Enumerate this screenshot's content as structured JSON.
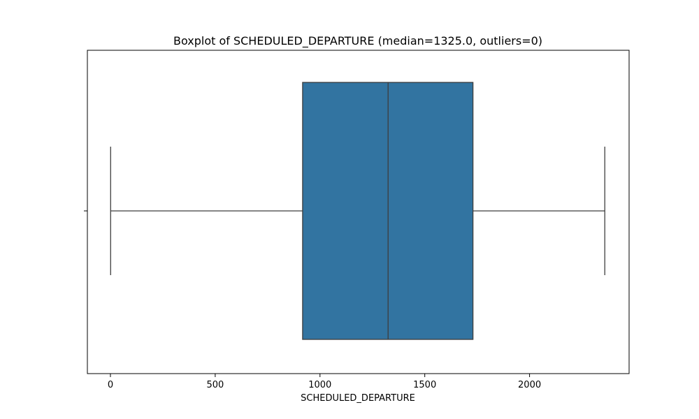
{
  "chart_data": {
    "type": "boxplot",
    "title": "Boxplot of SCHEDULED_DEPARTURE (median=1325.0, outliers=0)",
    "xlabel": "SCHEDULED_DEPARTURE",
    "ylabel": "",
    "xlim": [
      -110,
      2475
    ],
    "xticks": [
      0,
      500,
      1000,
      1500,
      2000
    ],
    "box": {
      "whisker_low": 1,
      "q1": 917,
      "median": 1325,
      "q3": 1730,
      "whisker_high": 2359,
      "outliers": []
    },
    "grid": false,
    "legend": "none",
    "colors": {
      "box_fill": "#3274a1",
      "line": "#3d3d3d",
      "axes": "#000000",
      "background": "#ffffff"
    }
  }
}
